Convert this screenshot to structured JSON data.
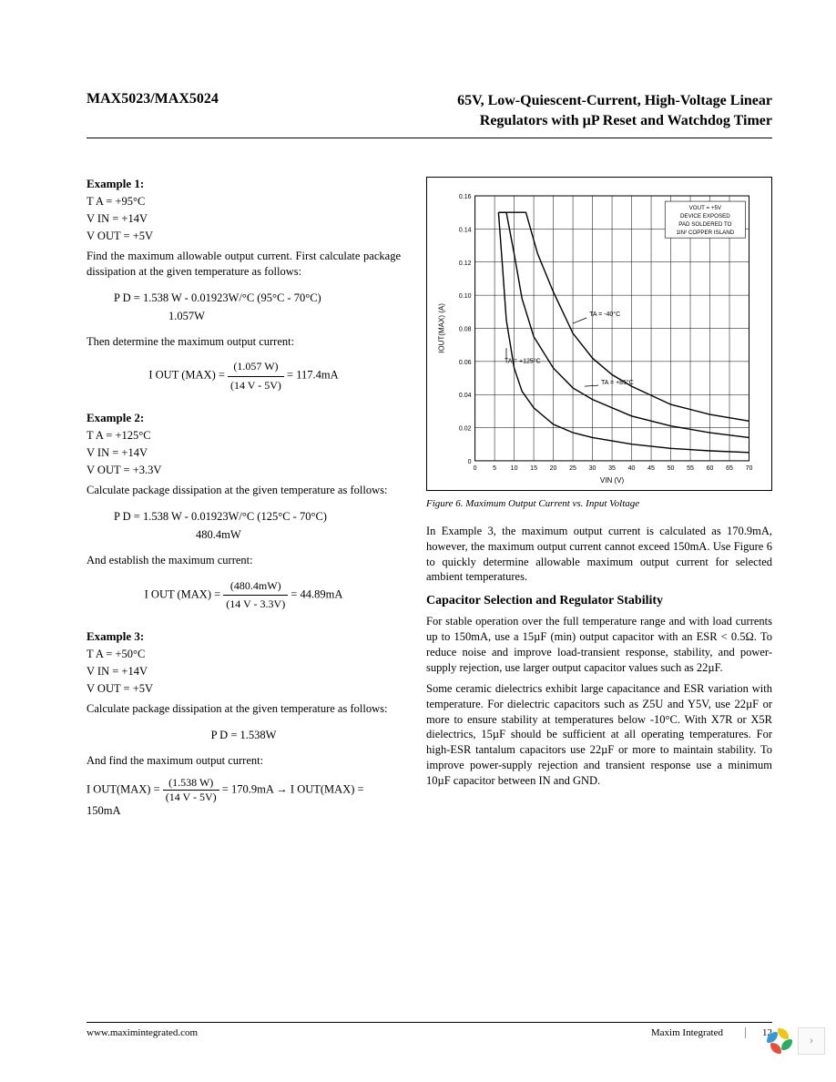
{
  "header": {
    "part_number": "MAX5023/MAX5024",
    "title_line1": "65V, Low-Quiescent-Current, High-Voltage Linear",
    "title_line2": "Regulators with µP Reset and Watchdog Timer"
  },
  "example1": {
    "label": "Example 1:",
    "ta": "T A = +95°C",
    "vin": "V IN  = +14V",
    "vout": "V OUT  = +5V",
    "intro": "Find the maximum allowable output current. First calculate package dissipation at the given temperature as follows:",
    "pd_line1": "P D  = 1.538 W - 0.01923W/°C (95°C - 70°C)",
    "pd_line2": "1.057W",
    "then_text": "Then determine the maximum output current:",
    "eq_label": "I OUT (MAX)  = ",
    "eq_top": "(1.057 W)",
    "eq_bot": "(14 V - 5V)",
    "eq_result": " = 117.4mA"
  },
  "example2": {
    "label": "Example 2:",
    "ta": "T A = +125°C",
    "vin": "V IN  = +14V",
    "vout": "V OUT  = +3.3V",
    "intro": "Calculate package dissipation at the given temperature as follows:",
    "pd_line1": "P D  = 1.538 W - 0.01923W/°C (125°C - 70°C)",
    "pd_line2": "480.4mW",
    "then_text": "And establish the maximum current:",
    "eq_label": "I OUT (MAX)  = ",
    "eq_top": "(480.4mW)",
    "eq_bot": "(14 V - 3.3V)",
    "eq_result": " = 44.89mA"
  },
  "example3": {
    "label": "Example 3:",
    "ta": "T A = +50°C",
    "vin": "V IN  = +14V",
    "vout": "V OUT  = +5V",
    "intro": "Calculate package dissipation at the given temperature as follows:",
    "pd_line": "P D  = 1.538W",
    "then_text": "And find the maximum output current:",
    "eq_label": "I OUT(MAX)  = ",
    "eq_top": "(1.538 W)",
    "eq_bot": "(14 V - 5V)",
    "eq_mid": " = 170.9mA    →  I OUT(MAX)  = 150mA"
  },
  "right_col": {
    "para1": "In Example 3, the maximum output current is calculated as 170.9mA, however, the maximum output current cannot exceed 150mA. Use Figure 6 to quickly determine allowable maximum output current for selected ambient temperatures.",
    "heading": "Capacitor Selection and Regulator Stability",
    "para2": "For stable operation over the full temperature range and with load currents up to 150mA, use a 15µF (min) output capacitor with an ESR < 0.5Ω. To reduce noise and improve load-transient response, stability, and power-supply rejection, use larger output capacitor values such as 22µF.",
    "para3": "Some ceramic dielectrics exhibit large capacitance and ESR variation with temperature. For dielectric capacitors such as Z5U and Y5V, use 22µF or more to ensure stability at temperatures below -10°C. With X7R or X5R dielectrics, 15µF should be sufficient at all operating temperatures. For high-ESR tantalum capacitors use 22µF or more to maintain stability. To improve power-supply rejection and transient response use a minimum 10µF capacitor between IN and GND."
  },
  "figure": {
    "caption": "Figure 6. Maximum Output Current vs. Input Voltage",
    "note_lines": [
      "VOUT = +5V",
      "DEVICE EXPOSED",
      "PAD SOLDERED TO",
      "1IN²  COPPER ISLAND"
    ],
    "curve_labels": [
      "TA = -40°C",
      "TA = +85°C",
      "TA = +125°C"
    ],
    "xlabel": "VIN (V)",
    "ylabel": "IOUT(MAX) (A)",
    "yticks": [
      "0",
      "0.02",
      "0.04",
      "0.06",
      "0.08",
      "0.10",
      "0.12",
      "0.14",
      "0.16"
    ],
    "xticks": [
      "0",
      "5",
      "10",
      "15",
      "20",
      "25",
      "30",
      "35",
      "40",
      "45",
      "50",
      "55",
      "60",
      "65",
      "70"
    ],
    "ylim": [
      0,
      0.16
    ],
    "xlim": [
      0,
      70
    ],
    "curves": {
      "curve_m40": [
        [
          6,
          0.15
        ],
        [
          8,
          0.15
        ],
        [
          10,
          0.15
        ],
        [
          13,
          0.15
        ],
        [
          16,
          0.125
        ],
        [
          20,
          0.102
        ],
        [
          25,
          0.077
        ],
        [
          30,
          0.062
        ],
        [
          35,
          0.052
        ],
        [
          40,
          0.045
        ],
        [
          50,
          0.034
        ],
        [
          60,
          0.028
        ],
        [
          70,
          0.024
        ]
      ],
      "curve_85": [
        [
          6,
          0.15
        ],
        [
          8,
          0.15
        ],
        [
          10,
          0.125
        ],
        [
          12,
          0.098
        ],
        [
          15,
          0.075
        ],
        [
          20,
          0.056
        ],
        [
          25,
          0.044
        ],
        [
          30,
          0.037
        ],
        [
          40,
          0.027
        ],
        [
          50,
          0.021
        ],
        [
          60,
          0.017
        ],
        [
          70,
          0.014
        ]
      ],
      "curve_125": [
        [
          6,
          0.15
        ],
        [
          7,
          0.118
        ],
        [
          8,
          0.085
        ],
        [
          10,
          0.056
        ],
        [
          12,
          0.042
        ],
        [
          15,
          0.032
        ],
        [
          20,
          0.022
        ],
        [
          25,
          0.017
        ],
        [
          30,
          0.014
        ],
        [
          40,
          0.01
        ],
        [
          50,
          0.0075
        ],
        [
          60,
          0.006
        ],
        [
          70,
          0.005
        ]
      ]
    },
    "colors": {
      "line": "#000000",
      "grid": "#000000",
      "bg": "#ffffff",
      "text": "#000000"
    },
    "line_width": 1.4,
    "grid_width": 0.5,
    "font_size_ticks": 7,
    "font_size_labels": 7
  },
  "footer": {
    "url": "www.maximintegrated.com",
    "brand": "Maxim Integrated",
    "page": "12"
  },
  "widget": {
    "petal_colors": [
      "#f1c40f",
      "#27ae60",
      "#e74c3c",
      "#3498db"
    ]
  }
}
